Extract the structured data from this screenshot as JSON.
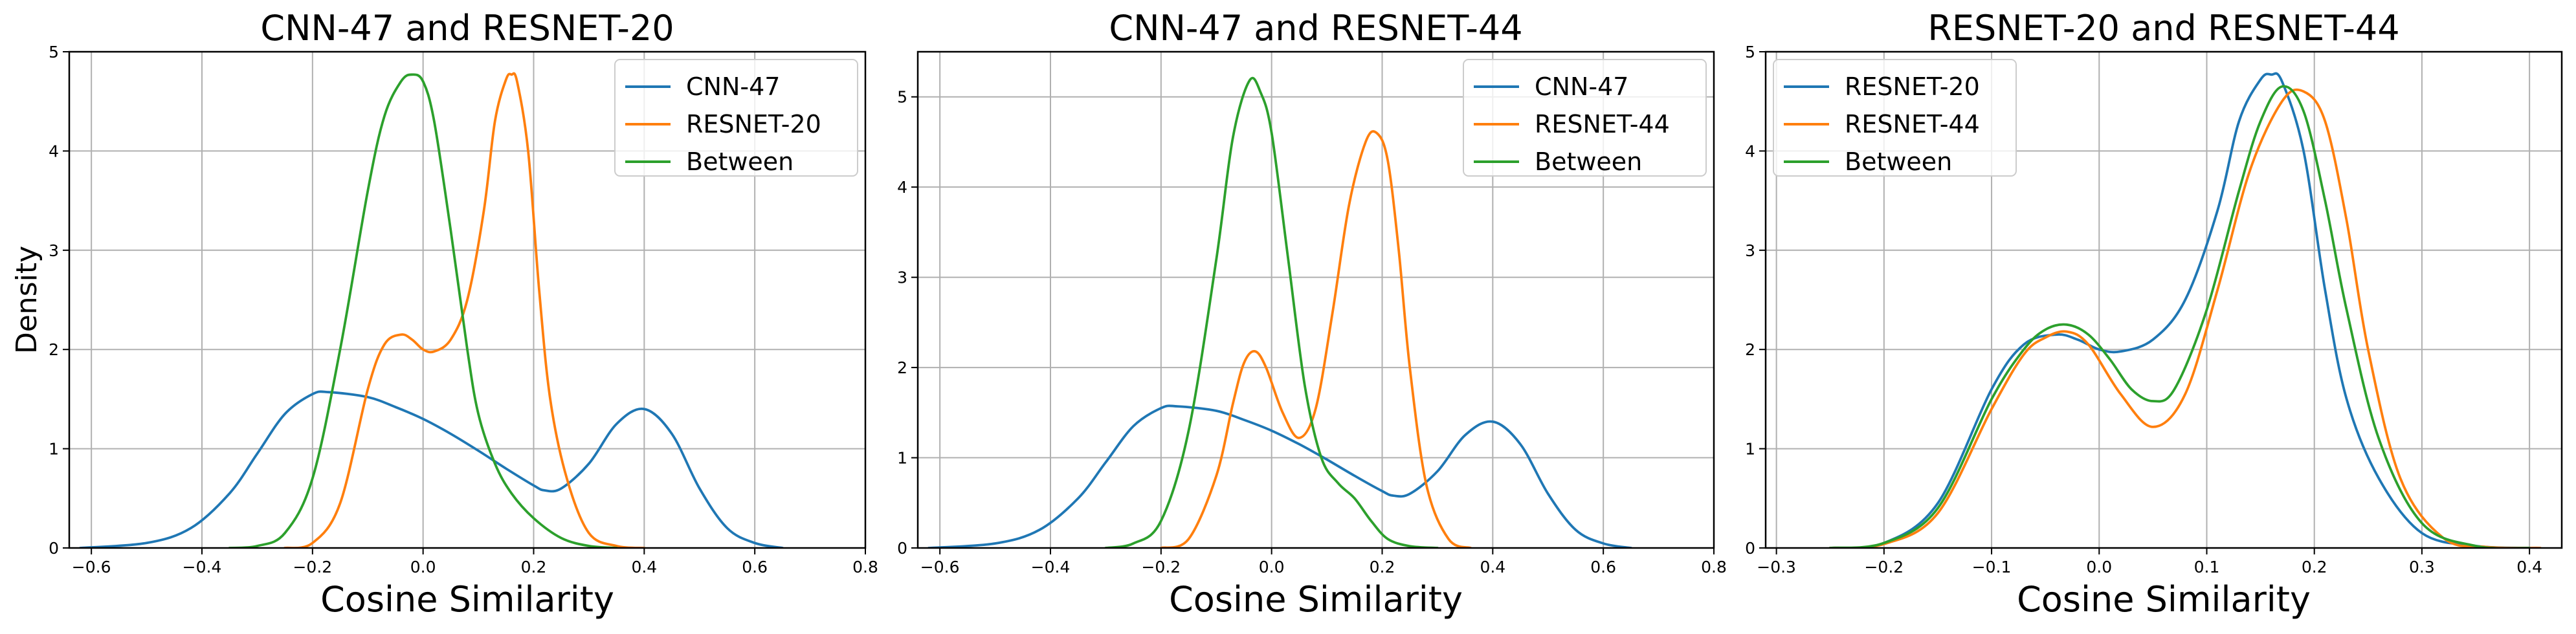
{
  "chart_data": [
    {
      "type": "line",
      "title": "CNN-47 and RESNET-20",
      "xlabel": "Cosine Similarity",
      "ylabel": "Density",
      "xlim": [
        -0.64,
        0.8
      ],
      "ylim": [
        0,
        5
      ],
      "xticks": [
        -0.6,
        -0.4,
        -0.2,
        0.0,
        0.2,
        0.4,
        0.6,
        0.8
      ],
      "xtick_labels": [
        "−0.6",
        "−0.4",
        "−0.2",
        "0.0",
        "0.2",
        "0.4",
        "0.6",
        "0.8"
      ],
      "yticks": [
        0,
        1,
        2,
        3,
        4,
        5
      ],
      "ytick_labels": [
        "0",
        "1",
        "2",
        "3",
        "4",
        "5"
      ],
      "grid": true,
      "legend": "top-right",
      "series": [
        {
          "name": "CNN-47",
          "color": "#1f77b4",
          "x": [
            -0.62,
            -0.5,
            -0.42,
            -0.35,
            -0.3,
            -0.25,
            -0.2,
            -0.17,
            -0.1,
            -0.05,
            0,
            0.05,
            0.1,
            0.15,
            0.2,
            0.22,
            0.25,
            0.3,
            0.35,
            0.4,
            0.45,
            0.5,
            0.55,
            0.6,
            0.65
          ],
          "y": [
            0.0,
            0.05,
            0.2,
            0.55,
            0.95,
            1.35,
            1.55,
            1.57,
            1.52,
            1.42,
            1.3,
            1.15,
            0.98,
            0.8,
            0.63,
            0.58,
            0.6,
            0.85,
            1.25,
            1.4,
            1.15,
            0.6,
            0.2,
            0.05,
            0.0
          ]
        },
        {
          "name": "RESNET-20",
          "color": "#ff7f0e",
          "x": [
            -0.25,
            -0.2,
            -0.15,
            -0.1,
            -0.07,
            -0.04,
            -0.02,
            0,
            0.02,
            0.05,
            0.08,
            0.11,
            0.13,
            0.15,
            0.16,
            0.17,
            0.19,
            0.21,
            0.23,
            0.26,
            0.3,
            0.35,
            0.4
          ],
          "y": [
            0.0,
            0.05,
            0.45,
            1.6,
            2.05,
            2.15,
            2.1,
            2.0,
            1.98,
            2.1,
            2.5,
            3.4,
            4.3,
            4.72,
            4.77,
            4.7,
            4.0,
            2.6,
            1.5,
            0.7,
            0.15,
            0.02,
            0.0
          ]
        },
        {
          "name": "Between",
          "color": "#2ca02c",
          "x": [
            -0.35,
            -0.3,
            -0.25,
            -0.2,
            -0.15,
            -0.1,
            -0.07,
            -0.04,
            -0.02,
            0,
            0.02,
            0.05,
            0.08,
            0.1,
            0.13,
            0.16,
            0.2,
            0.25,
            0.3,
            0.35
          ],
          "y": [
            0.0,
            0.02,
            0.15,
            0.7,
            2.0,
            3.6,
            4.35,
            4.7,
            4.77,
            4.7,
            4.3,
            3.2,
            2.0,
            1.35,
            0.85,
            0.55,
            0.3,
            0.1,
            0.02,
            0.0
          ]
        }
      ]
    },
    {
      "type": "line",
      "title": "CNN-47 and RESNET-44",
      "xlabel": "Cosine Similarity",
      "ylabel": "",
      "xlim": [
        -0.64,
        0.8
      ],
      "ylim": [
        0,
        5.5
      ],
      "xticks": [
        -0.6,
        -0.4,
        -0.2,
        0.0,
        0.2,
        0.4,
        0.6,
        0.8
      ],
      "xtick_labels": [
        "−0.6",
        "−0.4",
        "−0.2",
        "0.0",
        "0.2",
        "0.4",
        "0.6",
        "0.8"
      ],
      "yticks": [
        0,
        1,
        2,
        3,
        4,
        5
      ],
      "ytick_labels": [
        "0",
        "1",
        "2",
        "3",
        "4",
        "5"
      ],
      "grid": true,
      "legend": "top-right",
      "series": [
        {
          "name": "CNN-47",
          "color": "#1f77b4",
          "x": [
            -0.62,
            -0.5,
            -0.42,
            -0.35,
            -0.3,
            -0.25,
            -0.2,
            -0.17,
            -0.1,
            -0.05,
            0,
            0.05,
            0.1,
            0.15,
            0.2,
            0.22,
            0.25,
            0.3,
            0.35,
            0.4,
            0.45,
            0.5,
            0.55,
            0.6,
            0.65
          ],
          "y": [
            0.0,
            0.05,
            0.2,
            0.55,
            0.95,
            1.35,
            1.55,
            1.57,
            1.52,
            1.42,
            1.3,
            1.15,
            0.98,
            0.8,
            0.63,
            0.58,
            0.6,
            0.85,
            1.25,
            1.4,
            1.15,
            0.6,
            0.2,
            0.05,
            0.0
          ]
        },
        {
          "name": "RESNET-44",
          "color": "#ff7f0e",
          "x": [
            -0.2,
            -0.15,
            -0.1,
            -0.07,
            -0.05,
            -0.03,
            -0.01,
            0.02,
            0.05,
            0.08,
            0.11,
            0.14,
            0.17,
            0.19,
            0.21,
            0.23,
            0.25,
            0.28,
            0.32,
            0.36
          ],
          "y": [
            0.0,
            0.1,
            0.8,
            1.6,
            2.05,
            2.18,
            2.0,
            1.5,
            1.22,
            1.55,
            2.6,
            3.8,
            4.5,
            4.6,
            4.3,
            3.3,
            2.0,
            0.7,
            0.1,
            0.0
          ]
        },
        {
          "name": "Between",
          "color": "#2ca02c",
          "x": [
            -0.3,
            -0.25,
            -0.2,
            -0.15,
            -0.1,
            -0.07,
            -0.04,
            -0.02,
            0,
            0.03,
            0.06,
            0.09,
            0.12,
            0.15,
            0.18,
            0.21,
            0.25,
            0.3
          ],
          "y": [
            0.0,
            0.05,
            0.3,
            1.3,
            3.2,
            4.55,
            5.18,
            5.05,
            4.6,
            3.2,
            1.8,
            1.0,
            0.72,
            0.55,
            0.3,
            0.1,
            0.02,
            0.0
          ]
        }
      ]
    },
    {
      "type": "line",
      "title": "RESNET-20 and RESNET-44",
      "xlabel": "Cosine Similarity",
      "ylabel": "",
      "xlim": [
        -0.31,
        0.43
      ],
      "ylim": [
        0,
        5
      ],
      "xticks": [
        -0.3,
        -0.2,
        -0.1,
        0.0,
        0.1,
        0.2,
        0.3,
        0.4
      ],
      "xtick_labels": [
        "−0.3",
        "−0.2",
        "−0.1",
        "0.0",
        "0.1",
        "0.2",
        "0.3",
        "0.4"
      ],
      "yticks": [
        0,
        1,
        2,
        3,
        4,
        5
      ],
      "ytick_labels": [
        "0",
        "1",
        "2",
        "3",
        "4",
        "5"
      ],
      "grid": true,
      "legend": "top-left",
      "series": [
        {
          "name": "RESNET-20",
          "color": "#1f77b4",
          "x": [
            -0.25,
            -0.2,
            -0.15,
            -0.1,
            -0.07,
            -0.04,
            -0.02,
            0,
            0.02,
            0.05,
            0.08,
            0.11,
            0.13,
            0.15,
            0.16,
            0.17,
            0.19,
            0.21,
            0.23,
            0.26,
            0.3,
            0.35,
            0.4
          ],
          "y": [
            0.0,
            0.05,
            0.45,
            1.6,
            2.05,
            2.15,
            2.1,
            2.0,
            1.98,
            2.1,
            2.5,
            3.4,
            4.3,
            4.72,
            4.77,
            4.7,
            4.0,
            2.6,
            1.5,
            0.7,
            0.15,
            0.02,
            0.0
          ]
        },
        {
          "name": "RESNET-44",
          "color": "#ff7f0e",
          "x": [
            -0.25,
            -0.2,
            -0.15,
            -0.1,
            -0.07,
            -0.05,
            -0.03,
            -0.01,
            0.02,
            0.05,
            0.08,
            0.11,
            0.14,
            0.17,
            0.19,
            0.21,
            0.23,
            0.25,
            0.28,
            0.32,
            0.36,
            0.41
          ],
          "y": [
            0.0,
            0.04,
            0.35,
            1.4,
            1.95,
            2.12,
            2.18,
            2.05,
            1.55,
            1.22,
            1.55,
            2.6,
            3.8,
            4.5,
            4.6,
            4.3,
            3.3,
            2.0,
            0.7,
            0.1,
            0.01,
            0.0
          ]
        },
        {
          "name": "Between",
          "color": "#2ca02c",
          "x": [
            -0.25,
            -0.2,
            -0.15,
            -0.1,
            -0.07,
            -0.05,
            -0.03,
            -0.01,
            0.01,
            0.03,
            0.05,
            0.07,
            0.1,
            0.13,
            0.15,
            0.17,
            0.19,
            0.21,
            0.23,
            0.26,
            0.3,
            0.35,
            0.4
          ],
          "y": [
            0.0,
            0.05,
            0.4,
            1.5,
            2.0,
            2.2,
            2.25,
            2.15,
            1.9,
            1.6,
            1.48,
            1.6,
            2.4,
            3.6,
            4.3,
            4.65,
            4.4,
            3.5,
            2.4,
            1.1,
            0.25,
            0.02,
            0.0
          ]
        }
      ]
    }
  ]
}
